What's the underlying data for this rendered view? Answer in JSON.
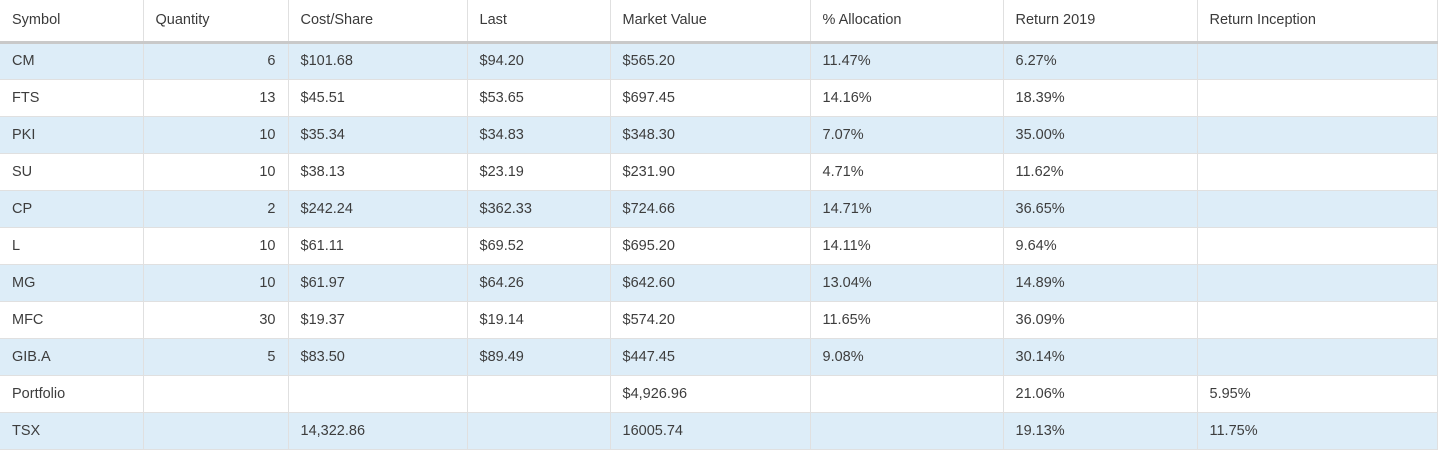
{
  "colors": {
    "row_stripe_blue": "#ddedf8",
    "row_stripe_white": "#ffffff",
    "cell_border": "#e0e0e0",
    "header_border": "#c9c9c9",
    "text": "#3d3d3d"
  },
  "table": {
    "columns": [
      "Symbol",
      "Quantity",
      "Cost/Share",
      "Last",
      "Market Value",
      "% Allocation",
      "Return 2019",
      "Return Inception"
    ],
    "rows": [
      [
        "CM",
        "6",
        "$101.68",
        "$94.20",
        "$565.20",
        "11.47%",
        "6.27%",
        ""
      ],
      [
        "FTS",
        "13",
        "$45.51",
        "$53.65",
        "$697.45",
        "14.16%",
        "18.39%",
        ""
      ],
      [
        "PKI",
        "10",
        "$35.34",
        "$34.83",
        "$348.30",
        "7.07%",
        "35.00%",
        ""
      ],
      [
        "SU",
        "10",
        "$38.13",
        "$23.19",
        "$231.90",
        "4.71%",
        "11.62%",
        ""
      ],
      [
        "CP",
        "2",
        "$242.24",
        "$362.33",
        "$724.66",
        "14.71%",
        "36.65%",
        ""
      ],
      [
        "L",
        "10",
        "$61.11",
        "$69.52",
        "$695.20",
        "14.11%",
        "9.64%",
        ""
      ],
      [
        "MG",
        "10",
        "$61.97",
        "$64.26",
        "$642.60",
        "13.04%",
        "14.89%",
        ""
      ],
      [
        "MFC",
        "30",
        "$19.37",
        "$19.14",
        "$574.20",
        "11.65%",
        "36.09%",
        ""
      ],
      [
        "GIB.A",
        "5",
        "$83.50",
        "$89.49",
        "$447.45",
        "9.08%",
        "30.14%",
        ""
      ],
      [
        "Portfolio",
        "",
        "",
        "",
        "$4,926.96",
        "",
        "21.06%",
        "5.95%"
      ],
      [
        "TSX",
        "",
        "14,322.86",
        "",
        "16005.74",
        "",
        "19.13%",
        "11.75%"
      ]
    ]
  }
}
